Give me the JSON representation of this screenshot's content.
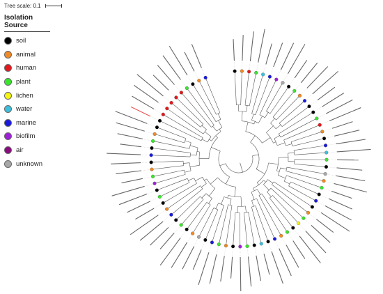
{
  "tree_scale": {
    "label": "Tree scale: 0.1"
  },
  "legend": {
    "title": "Isolation Source",
    "items": [
      {
        "label": "soil",
        "color": "#000000"
      },
      {
        "label": "animal",
        "color": "#f08a24"
      },
      {
        "label": "human",
        "color": "#e4181c"
      },
      {
        "label": "plant",
        "color": "#3ae62c"
      },
      {
        "label": "lichen",
        "color": "#f5f50f"
      },
      {
        "label": "water",
        "color": "#3ec0dc"
      },
      {
        "label": "marine",
        "color": "#1a1adc"
      },
      {
        "label": "biofilm",
        "color": "#a020d8"
      },
      {
        "label": "air",
        "color": "#8b0a80"
      },
      {
        "label": "unknown",
        "color": "#a8a8a8"
      }
    ]
  },
  "highlight_color": "#e01818",
  "tip_sources": [
    "soil",
    "animal",
    "human",
    "plant",
    "water",
    "marine",
    "biofilm",
    "unknown",
    "soil",
    "plant",
    "animal",
    "marine",
    "soil",
    "soil",
    "plant",
    "human",
    "animal",
    "soil",
    "marine",
    "water",
    "plant",
    "soil",
    "unknown",
    "animal",
    "plant",
    "soil",
    "marine",
    "soil",
    "animal",
    "plant",
    "lichen",
    "soil",
    "plant",
    "animal",
    "marine",
    "soil",
    "water",
    "soil",
    "plant",
    "biofilm",
    "soil",
    "animal",
    "plant",
    "marine",
    "soil",
    "unknown",
    "animal",
    "soil",
    "plant",
    "soil",
    "marine",
    "animal",
    "soil",
    "plant",
    "soil",
    "biofilm",
    "plant",
    "animal",
    "soil",
    "marine",
    "soil",
    "plant",
    "animal",
    "soil",
    "soil",
    "human",
    "human",
    "human",
    "human",
    "human",
    "plant",
    "soil",
    "animal",
    "marine"
  ]
}
